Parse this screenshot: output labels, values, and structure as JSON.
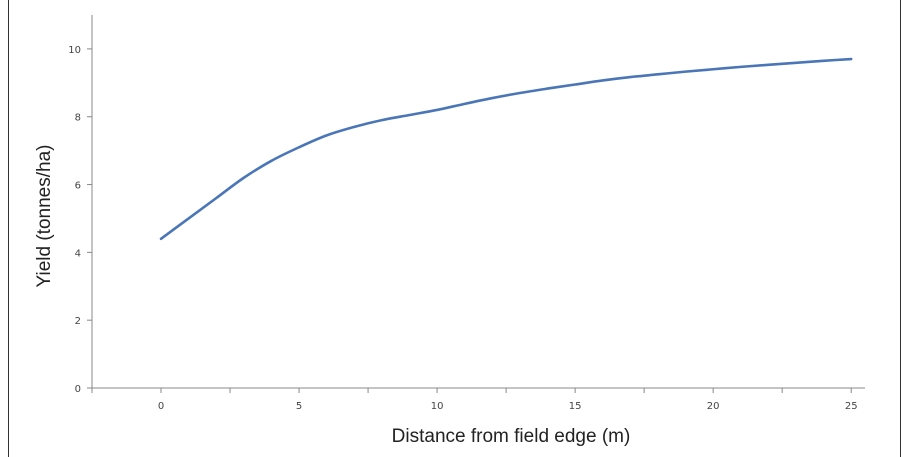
{
  "chart_data": {
    "type": "line",
    "title": "",
    "xlabel": "Distance from field edge (m)",
    "ylabel": "Yield (tonnes/ha)",
    "xlim": [
      -2.5,
      25.5
    ],
    "ylim": [
      0,
      11
    ],
    "x_ticks": [
      "0",
      "5",
      "10",
      "15",
      "20",
      "25"
    ],
    "y_ticks": [
      "0",
      "2",
      "4",
      "6",
      "8",
      "10"
    ],
    "grid": false,
    "legend": "none",
    "line_color": "#4a76b8",
    "series": [
      {
        "x": [
          0,
          1,
          2,
          3,
          4,
          5,
          6,
          7,
          8,
          9,
          10,
          11,
          12,
          13,
          14,
          15,
          16,
          17,
          18,
          19,
          20,
          21,
          22,
          23,
          24,
          25
        ],
        "values": [
          4.4,
          5.0,
          5.6,
          6.2,
          6.7,
          7.1,
          7.45,
          7.7,
          7.9,
          8.05,
          8.2,
          8.38,
          8.55,
          8.7,
          8.83,
          8.95,
          9.07,
          9.17,
          9.25,
          9.33,
          9.4,
          9.47,
          9.53,
          9.59,
          9.65,
          9.7
        ]
      }
    ]
  }
}
